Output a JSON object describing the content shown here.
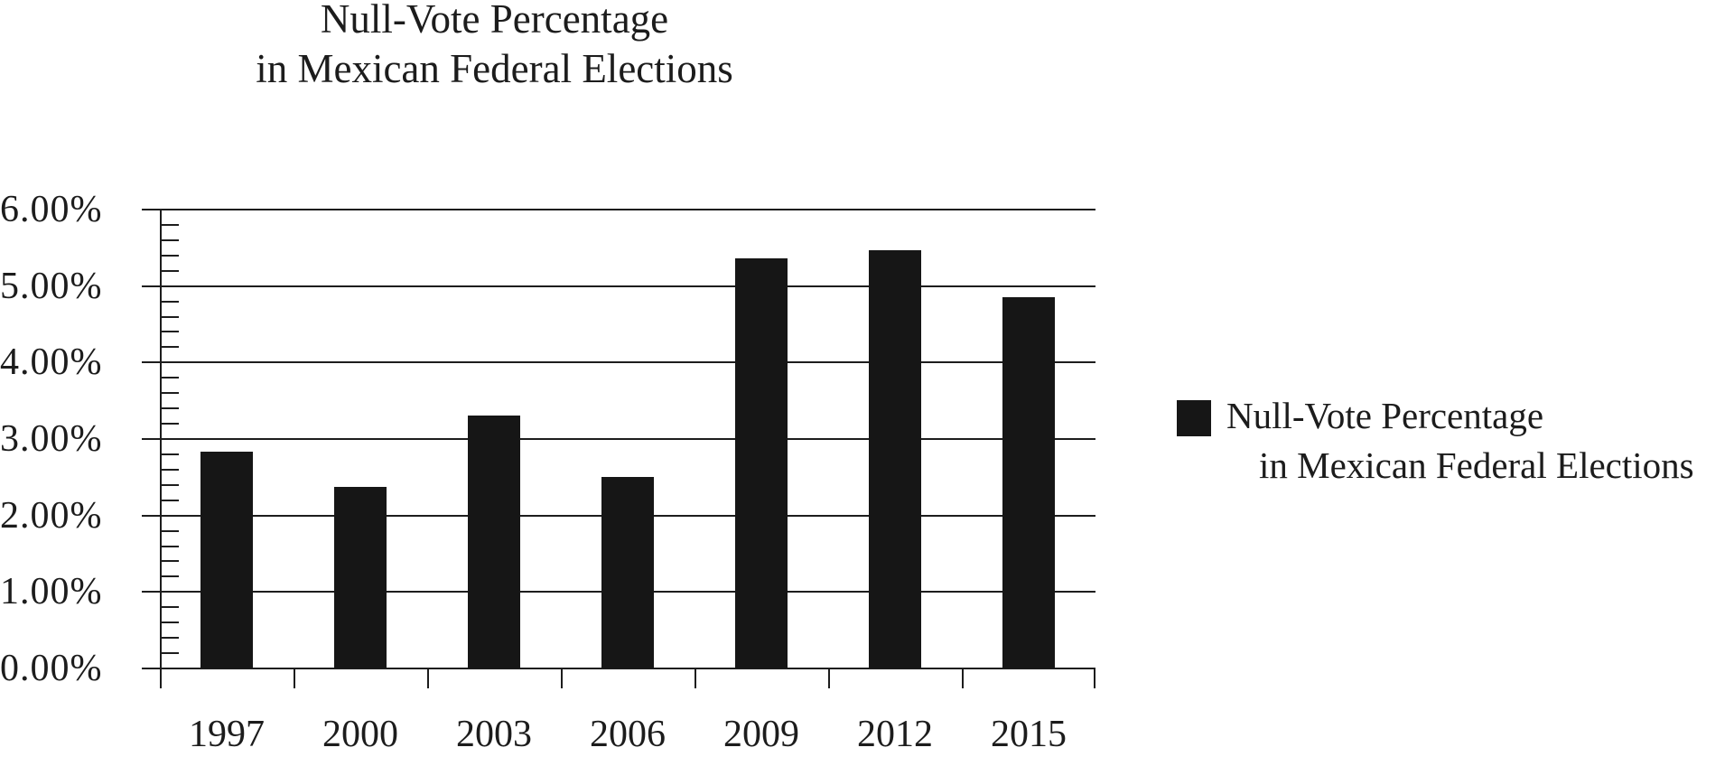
{
  "title": {
    "line1": "Null-Vote Percentage",
    "line2": "in Mexican Federal Elections"
  },
  "legend": {
    "line1": "Null-Vote Percentage",
    "line2": "in Mexican Federal Elections",
    "swatch_color": "#161616"
  },
  "y_axis": {
    "tick_labels": [
      "6.00%",
      "5.00%",
      "4.00%",
      "3.00%",
      "2.00%",
      "1.00%",
      "0.00%"
    ]
  },
  "x_axis": {
    "tick_labels": [
      "1997",
      "2000",
      "2003",
      "2006",
      "2009",
      "2012",
      "2015"
    ]
  },
  "colors": {
    "bar": "#161616",
    "line": "#1d1d1d",
    "text": "#1c1c1c",
    "background": "#ffffff"
  },
  "chart_data": {
    "type": "bar",
    "title": "Null-Vote Percentage in Mexican Federal Elections",
    "categories": [
      "1997",
      "2000",
      "2003",
      "2006",
      "2009",
      "2012",
      "2015"
    ],
    "series": [
      {
        "name": "Null-Vote Percentage in Mexican Federal Elections",
        "values": [
          2.84,
          2.38,
          3.31,
          2.5,
          5.36,
          5.47,
          4.85
        ]
      }
    ],
    "value_unit": "percent",
    "ylim": [
      0,
      6
    ],
    "y_major_tick": 1.0,
    "y_minor_tick": 0.2,
    "ytick_labels": [
      "6.00%",
      "5.00%",
      "4.00%",
      "3.00%",
      "2.00%",
      "1.00%",
      "0.00%"
    ],
    "grid": true,
    "legend_position": "right-center",
    "bar_color": "#161616"
  }
}
